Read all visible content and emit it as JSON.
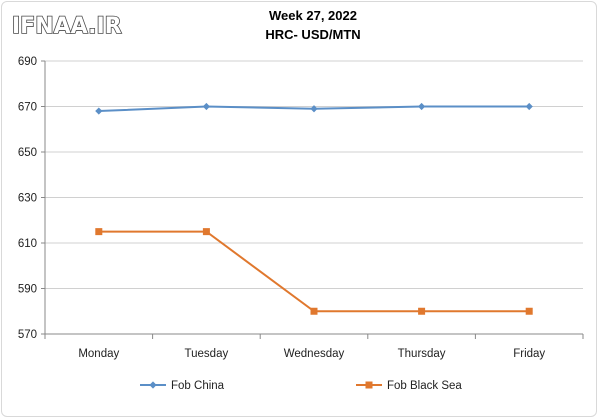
{
  "logo": {
    "text": "IFNAA.IR"
  },
  "chart_data": {
    "type": "line",
    "title": "Week 27, 2022",
    "subtitle": "HRC- USD/MTN",
    "xlabel": "",
    "ylabel": "",
    "categories": [
      "Monday",
      "Tuesday",
      "Wednesday",
      "Thursday",
      "Friday"
    ],
    "ylim": [
      570,
      690
    ],
    "yticks": [
      570,
      590,
      610,
      630,
      650,
      670,
      690
    ],
    "grid": "horizontal",
    "legend_position": "bottom",
    "series": [
      {
        "name": "Fob China",
        "color": "#5b8fc7",
        "marker": "diamond",
        "values": [
          668,
          670,
          669,
          670,
          670
        ]
      },
      {
        "name": "Fob Black Sea",
        "color": "#e0782e",
        "marker": "square",
        "values": [
          615,
          615,
          580,
          580,
          580
        ]
      }
    ]
  }
}
